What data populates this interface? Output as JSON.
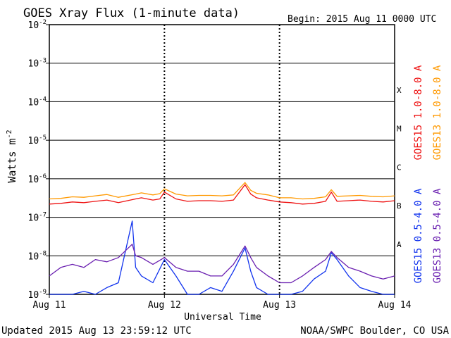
{
  "chart_data": {
    "type": "line",
    "title": "GOES Xray Flux (1-minute data)",
    "begin_label": "Begin:  2015 Aug 11 0000 UTC",
    "xlabel": "Universal Time",
    "ylabel": "Watts m",
    "ylabel_superscript": "-2",
    "y_scale": "log",
    "ylim": [
      1e-09,
      0.01
    ],
    "x_unit": "days since 2015 Aug 11 0000 UTC",
    "xlim": [
      0,
      3
    ],
    "grid": true,
    "y_ticks": [
      {
        "base": "10",
        "exp": "-2",
        "value": 0.01
      },
      {
        "base": "10",
        "exp": "-3",
        "value": 0.001
      },
      {
        "base": "10",
        "exp": "-4",
        "value": 0.0001
      },
      {
        "base": "10",
        "exp": "-5",
        "value": 1e-05
      },
      {
        "base": "10",
        "exp": "-6",
        "value": 1e-06
      },
      {
        "base": "10",
        "exp": "-7",
        "value": 1e-07
      },
      {
        "base": "10",
        "exp": "-8",
        "value": 1e-08
      },
      {
        "base": "10",
        "exp": "-9",
        "value": 1e-09
      }
    ],
    "x_ticks": [
      {
        "label": "Aug 11",
        "value": 0
      },
      {
        "label": "Aug 12",
        "value": 1
      },
      {
        "label": "Aug 13",
        "value": 2
      },
      {
        "label": "Aug 14",
        "value": 3
      }
    ],
    "flare_classes": [
      {
        "label": "X",
        "value": 0.0002
      },
      {
        "label": "M",
        "value": 2e-05
      },
      {
        "label": "C",
        "value": 2e-06
      },
      {
        "label": "B",
        "value": 2e-07
      },
      {
        "label": "A",
        "value": 2e-08
      }
    ],
    "series": [
      {
        "name": "GOES15 1.0-8.0 A",
        "color": "#ee1111",
        "x": [
          0,
          0.1,
          0.2,
          0.3,
          0.4,
          0.5,
          0.6,
          0.75,
          0.8,
          0.9,
          0.96,
          1.0,
          1.1,
          1.2,
          1.3,
          1.4,
          1.5,
          1.6,
          1.7,
          1.75,
          1.8,
          1.9,
          2.0,
          2.1,
          2.2,
          2.3,
          2.4,
          2.45,
          2.5,
          2.6,
          2.7,
          2.8,
          2.9,
          3.0
        ],
        "y": [
          2.2e-07,
          2.3e-07,
          2.5e-07,
          2.4e-07,
          2.6e-07,
          2.8e-07,
          2.4e-07,
          3e-07,
          3.2e-07,
          2.8e-07,
          3e-07,
          4.5e-07,
          3e-07,
          2.6e-07,
          2.7e-07,
          2.7e-07,
          2.6e-07,
          2.8e-07,
          7e-07,
          4e-07,
          3.2e-07,
          2.8e-07,
          2.5e-07,
          2.4e-07,
          2.2e-07,
          2.3e-07,
          2.6e-07,
          4.5e-07,
          2.6e-07,
          2.7e-07,
          2.8e-07,
          2.6e-07,
          2.5e-07,
          2.7e-07
        ]
      },
      {
        "name": "GOES13 1.0-8.0 A",
        "color": "#ff9900",
        "x": [
          0,
          0.1,
          0.2,
          0.3,
          0.4,
          0.5,
          0.6,
          0.75,
          0.8,
          0.9,
          0.96,
          1.0,
          1.1,
          1.2,
          1.3,
          1.4,
          1.5,
          1.6,
          1.7,
          1.75,
          1.8,
          1.9,
          2.0,
          2.1,
          2.2,
          2.3,
          2.4,
          2.45,
          2.5,
          2.6,
          2.7,
          2.8,
          2.9,
          3.0
        ],
        "y": [
          3e-07,
          3.1e-07,
          3.4e-07,
          3.3e-07,
          3.6e-07,
          3.9e-07,
          3.3e-07,
          4e-07,
          4.3e-07,
          3.8e-07,
          4.1e-07,
          5.5e-07,
          4e-07,
          3.6e-07,
          3.7e-07,
          3.7e-07,
          3.6e-07,
          3.8e-07,
          8e-07,
          5e-07,
          4.2e-07,
          3.8e-07,
          3.2e-07,
          3.2e-07,
          3e-07,
          3.1e-07,
          3.4e-07,
          5.2e-07,
          3.5e-07,
          3.6e-07,
          3.7e-07,
          3.5e-07,
          3.4e-07,
          3.6e-07
        ]
      },
      {
        "name": "GOES15 0.5-4.0 A",
        "color": "#1133ee",
        "x": [
          0,
          0.1,
          0.2,
          0.3,
          0.4,
          0.5,
          0.6,
          0.72,
          0.75,
          0.8,
          0.9,
          1.0,
          1.1,
          1.2,
          1.3,
          1.4,
          1.5,
          1.6,
          1.7,
          1.75,
          1.8,
          1.9,
          2.0,
          2.1,
          2.2,
          2.3,
          2.4,
          2.45,
          2.5,
          2.6,
          2.7,
          2.8,
          2.9,
          3.0
        ],
        "y": [
          1e-09,
          1e-09,
          1e-09,
          1.2e-09,
          1e-09,
          1.5e-09,
          2e-09,
          8e-08,
          5e-09,
          3e-09,
          2e-09,
          8e-09,
          3e-09,
          1e-09,
          1e-09,
          1.5e-09,
          1.2e-09,
          4e-09,
          1.6e-08,
          4e-09,
          1.5e-09,
          1e-09,
          1e-09,
          1e-09,
          1.2e-09,
          2.5e-09,
          4e-09,
          1.2e-08,
          8e-09,
          3e-09,
          1.5e-09,
          1.2e-09,
          1e-09,
          1e-09
        ]
      },
      {
        "name": "GOES13 0.5-4.0 A",
        "color": "#6a1fb0",
        "x": [
          0,
          0.1,
          0.2,
          0.3,
          0.4,
          0.5,
          0.6,
          0.72,
          0.75,
          0.8,
          0.9,
          1.0,
          1.1,
          1.2,
          1.3,
          1.4,
          1.5,
          1.6,
          1.7,
          1.75,
          1.8,
          1.9,
          2.0,
          2.1,
          2.2,
          2.3,
          2.4,
          2.45,
          2.5,
          2.6,
          2.7,
          2.8,
          2.9,
          3.0
        ],
        "y": [
          3e-09,
          5e-09,
          6e-09,
          5e-09,
          8e-09,
          7e-09,
          9e-09,
          2e-08,
          1e-08,
          9e-09,
          6e-09,
          9e-09,
          5e-09,
          4e-09,
          4e-09,
          3e-09,
          3e-09,
          6e-09,
          1.8e-08,
          9e-09,
          5e-09,
          3e-09,
          2e-09,
          2e-09,
          3e-09,
          5e-09,
          8e-09,
          1.3e-08,
          9e-09,
          5e-09,
          4e-09,
          3e-09,
          2.5e-09,
          3e-09
        ]
      }
    ],
    "footer_left": "Updated 2015 Aug 13 23:59:12 UTC",
    "footer_right": "NOAA/SWPC Boulder, CO USA"
  }
}
